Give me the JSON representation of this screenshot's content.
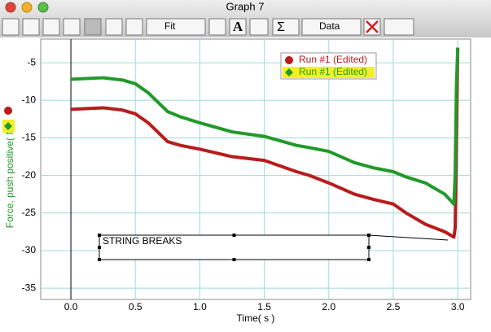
{
  "window": {
    "title": "Graph 7"
  },
  "toolbar": {
    "fit_label": "Fit",
    "data_label": "Data",
    "text_icons": [
      "A",
      "Σ"
    ]
  },
  "chart_data": {
    "type": "line",
    "x_label": "Time( s )",
    "y_label": "Force, push positive( N )",
    "annotation": "STRING BREAKS",
    "x": [
      0,
      0.25,
      0.4,
      0.5,
      0.6,
      0.75,
      0.85,
      1.0,
      1.25,
      1.5,
      1.75,
      1.85,
      2.0,
      2.2,
      2.35,
      2.5,
      2.6,
      2.75,
      2.9,
      2.97,
      2.98,
      2.99,
      3.0
    ],
    "series": [
      {
        "name": "Run #1 (Edited)",
        "color": "#b81c1c",
        "marker": "circle",
        "values": [
          -11.2,
          -11,
          -11.3,
          -11.8,
          -13,
          -15.5,
          -16,
          -16.5,
          -17.5,
          -18,
          -19.5,
          -20,
          -21,
          -22.5,
          -23.2,
          -23.8,
          -25,
          -26.5,
          -27.5,
          -28.2,
          -27,
          -15,
          -3
        ]
      },
      {
        "name": "Run #1 (Edited)",
        "color": "#22992a",
        "marker": "diamond",
        "highlight": "#f4f020",
        "values": [
          -7.2,
          -7,
          -7.3,
          -7.8,
          -9,
          -11.5,
          -12.2,
          -13,
          -14.2,
          -14.8,
          -16,
          -16.3,
          -16.8,
          -18.3,
          -19,
          -19.5,
          -20.2,
          -21,
          -22.5,
          -23.8,
          -20,
          -8,
          -3
        ]
      }
    ],
    "xlim": [
      -0.234,
      3.1
    ],
    "ylim": [
      -36.5,
      -1.85
    ],
    "xticks": [
      {
        "value": 0,
        "label": "0.0"
      },
      {
        "value": 0.5,
        "label": "0.5"
      },
      {
        "value": 1,
        "label": "1.0"
      },
      {
        "value": 1.5,
        "label": "1.5"
      },
      {
        "value": 2,
        "label": "2.0"
      },
      {
        "value": 2.5,
        "label": "2.5"
      },
      {
        "value": 3,
        "label": "3.0"
      }
    ],
    "yticks": [
      -5,
      -10,
      -15,
      -20,
      -25,
      -30,
      -35
    ],
    "grid": true,
    "legend": "top-right"
  }
}
